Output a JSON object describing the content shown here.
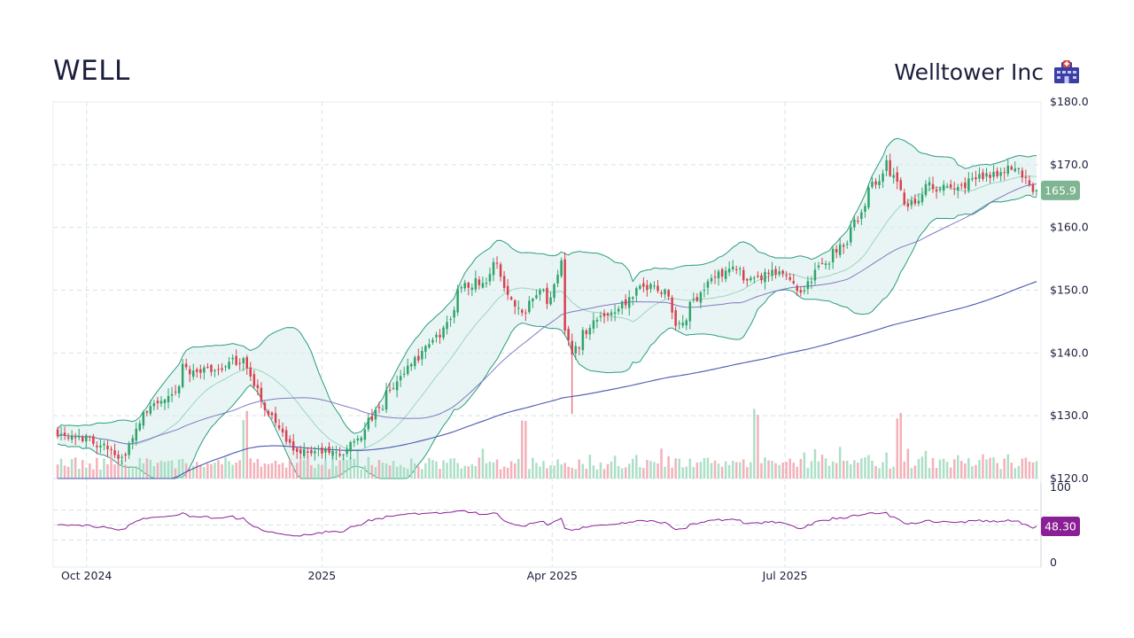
{
  "header": {
    "ticker": "WELL",
    "company": "Welltower Inc",
    "logo_icon": "hospital-building-icon"
  },
  "colors": {
    "up": "#2fa36b",
    "down": "#d9404f",
    "volume_up": "#9fd9bd",
    "volume_down": "#f1a3ad",
    "bollinger_line": "#2b9c7e",
    "bollinger_fill": "#d9efec",
    "sma50": "#6e64b8",
    "sma200": "#4a56b0",
    "rsi": "#8b1f95",
    "last_price_tag": "#7fb592",
    "rsi_tag": "#8b1f95",
    "grid": "#d5e3e8"
  },
  "chart_data": {
    "type": "candlestick",
    "price_axis": {
      "min": 120,
      "max": 180,
      "ticks": [
        120,
        130,
        140,
        150,
        160,
        170,
        180
      ],
      "tick_labels": [
        "$120.0",
        "$130.0",
        "$140.0",
        "$150.0",
        "$160.0",
        "$170.0",
        "$180.0"
      ],
      "side": "right"
    },
    "rsi_axis": {
      "min": 0,
      "max": 100,
      "ticks": [
        0,
        100
      ],
      "tick_labels": [
        "0",
        "100"
      ],
      "guides": [
        30,
        50,
        70
      ]
    },
    "x_axis": {
      "start": "2024-09-19",
      "end": "2025-10-08",
      "tick_labels": [
        "Oct 2024",
        "2025",
        "Apr 2025",
        "Jul 2025"
      ],
      "tick_dates": [
        "2024-10-01",
        "2025-01-01",
        "2025-04-01",
        "2025-07-01"
      ]
    },
    "last_price": "165.9",
    "last_rsi": "48.30",
    "grid": true,
    "close_anchors": [
      [
        "2024-09-19",
        127.5
      ],
      [
        "2024-09-27",
        127.0
      ],
      [
        "2024-10-10",
        124.5
      ],
      [
        "2024-10-15",
        123.5
      ],
      [
        "2024-10-25",
        131.5
      ],
      [
        "2024-11-05",
        133.0
      ],
      [
        "2024-11-07",
        137.5
      ],
      [
        "2024-11-15",
        137.0
      ],
      [
        "2024-11-25",
        138.0
      ],
      [
        "2024-12-02",
        139.5
      ],
      [
        "2024-12-05",
        134.5
      ],
      [
        "2024-12-12",
        130.0
      ],
      [
        "2024-12-20",
        124.5
      ],
      [
        "2025-01-10",
        124.0
      ],
      [
        "2025-01-20",
        129.0
      ],
      [
        "2025-01-27",
        133.5
      ],
      [
        "2025-02-04",
        138.0
      ],
      [
        "2025-02-12",
        141.5
      ],
      [
        "2025-02-18",
        143.5
      ],
      [
        "2025-02-25",
        151.0
      ],
      [
        "2025-03-06",
        151.5
      ],
      [
        "2025-03-11",
        154.5
      ],
      [
        "2025-03-13",
        150.5
      ],
      [
        "2025-03-20",
        146.5
      ],
      [
        "2025-03-27",
        150.5
      ],
      [
        "2025-03-31",
        147.5
      ],
      [
        "2025-04-04",
        155.0
      ],
      [
        "2025-04-07",
        144.0
      ],
      [
        "2025-04-09",
        140.0
      ],
      [
        "2025-04-17",
        145.0
      ],
      [
        "2025-04-28",
        147.5
      ],
      [
        "2025-05-09",
        151.0
      ],
      [
        "2025-05-15",
        150.0
      ],
      [
        "2025-05-21",
        144.0
      ],
      [
        "2025-05-30",
        150.5
      ],
      [
        "2025-06-10",
        154.0
      ],
      [
        "2025-06-17",
        151.0
      ],
      [
        "2025-06-25",
        152.5
      ],
      [
        "2025-07-01",
        152.5
      ],
      [
        "2025-07-08",
        150.0
      ],
      [
        "2025-07-16",
        154.0
      ],
      [
        "2025-07-24",
        157.5
      ],
      [
        "2025-07-31",
        162.0
      ],
      [
        "2025-08-05",
        167.0
      ],
      [
        "2025-08-11",
        170.0
      ],
      [
        "2025-08-18",
        163.0
      ],
      [
        "2025-08-26",
        166.5
      ],
      [
        "2025-09-05",
        166.0
      ],
      [
        "2025-09-18",
        168.5
      ],
      [
        "2025-09-30",
        169.5
      ],
      [
        "2025-10-03",
        168.0
      ],
      [
        "2025-10-08",
        165.9
      ]
    ],
    "volume_spike_dates": [
      "2024-12-02",
      "2025-03-21",
      "2025-06-20",
      "2025-08-15"
    ],
    "series": [
      {
        "kind": "ohlc"
      },
      {
        "kind": "volume"
      },
      {
        "kind": "bollinger_bands"
      },
      {
        "kind": "sma_short"
      },
      {
        "kind": "sma_long"
      },
      {
        "kind": "rsi"
      }
    ]
  }
}
